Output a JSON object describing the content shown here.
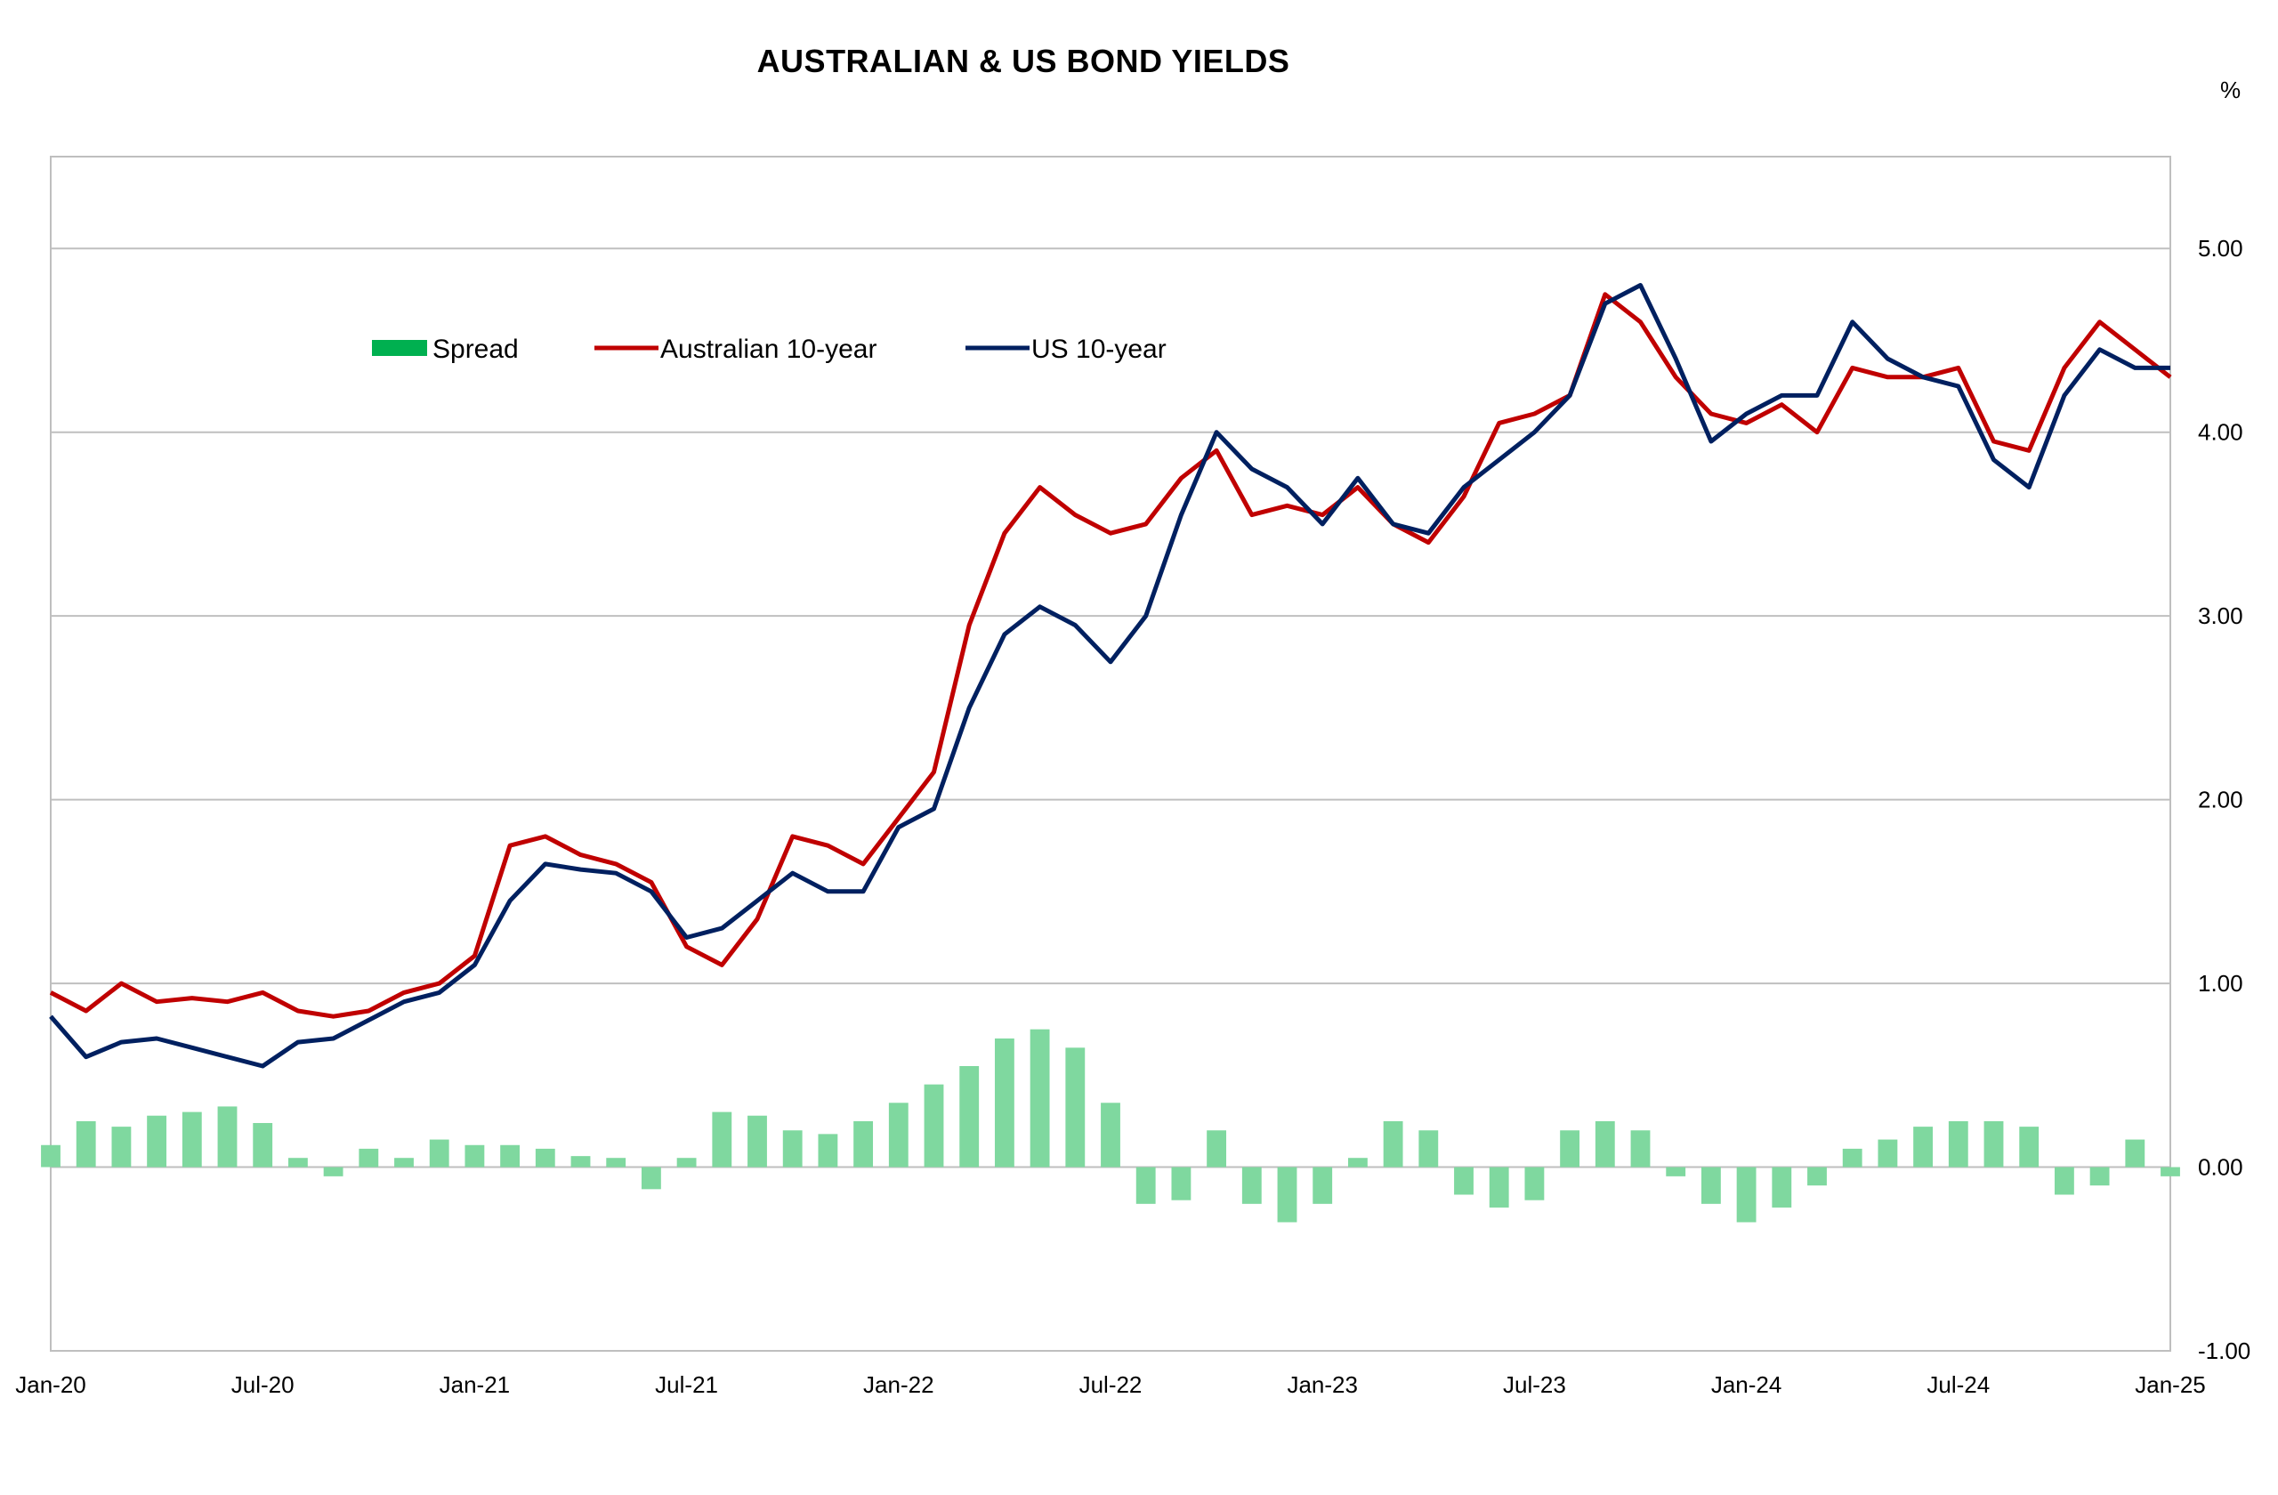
{
  "chart_data": {
    "type": "line",
    "title": "AUSTRALIAN & US BOND YIELDS",
    "unit": "%",
    "xlabel": "",
    "ylabel": "",
    "x_range": [
      "2020-01",
      "2025-01"
    ],
    "ylim": [
      -1.0,
      5.5
    ],
    "y_ticks": [
      "5.00",
      "4.00",
      "3.00",
      "2.00",
      "1.00",
      "0.00",
      "-1.00"
    ],
    "x_ticks": [
      "Jan-20",
      "Jul-20",
      "Jan-21",
      "Jul-21",
      "Jan-22",
      "Jul-22",
      "Jan-23",
      "Jul-23",
      "Jan-24",
      "Jul-24",
      "Jan-25"
    ],
    "grid": true,
    "legend_position": "top-left",
    "series": [
      {
        "name": "Spread",
        "kind": "bar",
        "color": "#00b050",
        "points": [
          [
            "2020-01",
            0.12
          ],
          [
            "2020-02",
            0.25
          ],
          [
            "2020-03",
            0.22
          ],
          [
            "2020-04",
            0.28
          ],
          [
            "2020-05",
            0.3
          ],
          [
            "2020-06",
            0.33
          ],
          [
            "2020-07",
            0.24
          ],
          [
            "2020-08",
            0.05
          ],
          [
            "2020-09",
            -0.05
          ],
          [
            "2020-10",
            0.1
          ],
          [
            "2020-11",
            0.05
          ],
          [
            "2020-12",
            0.15
          ],
          [
            "2021-01",
            0.12
          ],
          [
            "2021-02",
            0.12
          ],
          [
            "2021-03",
            0.1
          ],
          [
            "2021-04",
            0.06
          ],
          [
            "2021-05",
            0.05
          ],
          [
            "2021-06",
            -0.12
          ],
          [
            "2021-07",
            0.05
          ],
          [
            "2021-08",
            0.3
          ],
          [
            "2021-09",
            0.28
          ],
          [
            "2021-10",
            0.2
          ],
          [
            "2021-11",
            0.18
          ],
          [
            "2021-12",
            0.25
          ],
          [
            "2022-01",
            0.35
          ],
          [
            "2022-02",
            0.45
          ],
          [
            "2022-03",
            0.55
          ],
          [
            "2022-04",
            0.7
          ],
          [
            "2022-05",
            0.75
          ],
          [
            "2022-06",
            0.65
          ],
          [
            "2022-07",
            0.35
          ],
          [
            "2022-08",
            -0.2
          ],
          [
            "2022-09",
            -0.18
          ],
          [
            "2022-10",
            0.2
          ],
          [
            "2022-11",
            -0.2
          ],
          [
            "2022-12",
            -0.3
          ],
          [
            "2023-01",
            -0.2
          ],
          [
            "2023-02",
            0.05
          ],
          [
            "2023-03",
            0.25
          ],
          [
            "2023-04",
            0.2
          ],
          [
            "2023-05",
            -0.15
          ],
          [
            "2023-06",
            -0.22
          ],
          [
            "2023-07",
            -0.18
          ],
          [
            "2023-08",
            0.2
          ],
          [
            "2023-09",
            0.25
          ],
          [
            "2023-10",
            0.2
          ],
          [
            "2023-11",
            -0.05
          ],
          [
            "2023-12",
            -0.2
          ],
          [
            "2024-01",
            -0.3
          ],
          [
            "2024-02",
            -0.22
          ],
          [
            "2024-03",
            -0.1
          ],
          [
            "2024-04",
            0.1
          ],
          [
            "2024-05",
            0.15
          ],
          [
            "2024-06",
            0.22
          ],
          [
            "2024-07",
            0.25
          ],
          [
            "2024-08",
            0.25
          ],
          [
            "2024-09",
            0.22
          ],
          [
            "2024-10",
            -0.15
          ],
          [
            "2024-11",
            -0.1
          ],
          [
            "2024-12",
            0.15
          ],
          [
            "2025-01",
            -0.05
          ]
        ]
      },
      {
        "name": "Australian 10-year",
        "kind": "line",
        "color": "#c00000",
        "points": [
          [
            "2020-01",
            0.95
          ],
          [
            "2020-02",
            0.85
          ],
          [
            "2020-03",
            1.0
          ],
          [
            "2020-04",
            0.9
          ],
          [
            "2020-05",
            0.92
          ],
          [
            "2020-06",
            0.9
          ],
          [
            "2020-07",
            0.95
          ],
          [
            "2020-08",
            0.85
          ],
          [
            "2020-09",
            0.82
          ],
          [
            "2020-10",
            0.85
          ],
          [
            "2020-11",
            0.95
          ],
          [
            "2020-12",
            1.0
          ],
          [
            "2021-01",
            1.15
          ],
          [
            "2021-02",
            1.75
          ],
          [
            "2021-03",
            1.8
          ],
          [
            "2021-04",
            1.7
          ],
          [
            "2021-05",
            1.65
          ],
          [
            "2021-06",
            1.55
          ],
          [
            "2021-07",
            1.2
          ],
          [
            "2021-08",
            1.1
          ],
          [
            "2021-09",
            1.35
          ],
          [
            "2021-10",
            1.8
          ],
          [
            "2021-11",
            1.75
          ],
          [
            "2021-12",
            1.65
          ],
          [
            "2022-01",
            1.9
          ],
          [
            "2022-02",
            2.15
          ],
          [
            "2022-03",
            2.95
          ],
          [
            "2022-04",
            3.45
          ],
          [
            "2022-05",
            3.7
          ],
          [
            "2022-06",
            3.55
          ],
          [
            "2022-07",
            3.45
          ],
          [
            "2022-08",
            3.5
          ],
          [
            "2022-09",
            3.75
          ],
          [
            "2022-10",
            3.9
          ],
          [
            "2022-11",
            3.55
          ],
          [
            "2022-12",
            3.6
          ],
          [
            "2023-01",
            3.55
          ],
          [
            "2023-02",
            3.7
          ],
          [
            "2023-03",
            3.5
          ],
          [
            "2023-04",
            3.4
          ],
          [
            "2023-05",
            3.65
          ],
          [
            "2023-06",
            4.05
          ],
          [
            "2023-07",
            4.1
          ],
          [
            "2023-08",
            4.2
          ],
          [
            "2023-09",
            4.75
          ],
          [
            "2023-10",
            4.6
          ],
          [
            "2023-11",
            4.3
          ],
          [
            "2023-12",
            4.1
          ],
          [
            "2024-01",
            4.05
          ],
          [
            "2024-02",
            4.15
          ],
          [
            "2024-03",
            4.0
          ],
          [
            "2024-04",
            4.35
          ],
          [
            "2024-05",
            4.3
          ],
          [
            "2024-06",
            4.3
          ],
          [
            "2024-07",
            4.35
          ],
          [
            "2024-08",
            3.95
          ],
          [
            "2024-09",
            3.9
          ],
          [
            "2024-10",
            4.35
          ],
          [
            "2024-11",
            4.6
          ],
          [
            "2024-12",
            4.45
          ],
          [
            "2025-01",
            4.3
          ]
        ]
      },
      {
        "name": "US 10-year",
        "kind": "line",
        "color": "#002060",
        "points": [
          [
            "2020-01",
            0.82
          ],
          [
            "2020-02",
            0.6
          ],
          [
            "2020-03",
            0.68
          ],
          [
            "2020-04",
            0.7
          ],
          [
            "2020-05",
            0.65
          ],
          [
            "2020-06",
            0.6
          ],
          [
            "2020-07",
            0.55
          ],
          [
            "2020-08",
            0.68
          ],
          [
            "2020-09",
            0.7
          ],
          [
            "2020-10",
            0.8
          ],
          [
            "2020-11",
            0.9
          ],
          [
            "2020-12",
            0.95
          ],
          [
            "2021-01",
            1.1
          ],
          [
            "2021-02",
            1.45
          ],
          [
            "2021-03",
            1.65
          ],
          [
            "2021-04",
            1.62
          ],
          [
            "2021-05",
            1.6
          ],
          [
            "2021-06",
            1.5
          ],
          [
            "2021-07",
            1.25
          ],
          [
            "2021-08",
            1.3
          ],
          [
            "2021-09",
            1.45
          ],
          [
            "2021-10",
            1.6
          ],
          [
            "2021-11",
            1.5
          ],
          [
            "2021-12",
            1.5
          ],
          [
            "2022-01",
            1.85
          ],
          [
            "2022-02",
            1.95
          ],
          [
            "2022-03",
            2.5
          ],
          [
            "2022-04",
            2.9
          ],
          [
            "2022-05",
            3.05
          ],
          [
            "2022-06",
            2.95
          ],
          [
            "2022-07",
            2.75
          ],
          [
            "2022-08",
            3.0
          ],
          [
            "2022-09",
            3.55
          ],
          [
            "2022-10",
            4.0
          ],
          [
            "2022-11",
            3.8
          ],
          [
            "2022-12",
            3.7
          ],
          [
            "2023-01",
            3.5
          ],
          [
            "2023-02",
            3.75
          ],
          [
            "2023-03",
            3.5
          ],
          [
            "2023-04",
            3.45
          ],
          [
            "2023-05",
            3.7
          ],
          [
            "2023-06",
            3.85
          ],
          [
            "2023-07",
            4.0
          ],
          [
            "2023-08",
            4.2
          ],
          [
            "2023-09",
            4.7
          ],
          [
            "2023-10",
            4.8
          ],
          [
            "2023-11",
            4.4
          ],
          [
            "2023-12",
            3.95
          ],
          [
            "2024-01",
            4.1
          ],
          [
            "2024-02",
            4.2
          ],
          [
            "2024-03",
            4.2
          ],
          [
            "2024-04",
            4.6
          ],
          [
            "2024-05",
            4.4
          ],
          [
            "2024-06",
            4.3
          ],
          [
            "2024-07",
            4.25
          ],
          [
            "2024-08",
            3.85
          ],
          [
            "2024-09",
            3.7
          ],
          [
            "2024-10",
            4.2
          ],
          [
            "2024-11",
            4.45
          ],
          [
            "2024-12",
            4.35
          ],
          [
            "2025-01",
            4.35
          ]
        ]
      }
    ]
  }
}
